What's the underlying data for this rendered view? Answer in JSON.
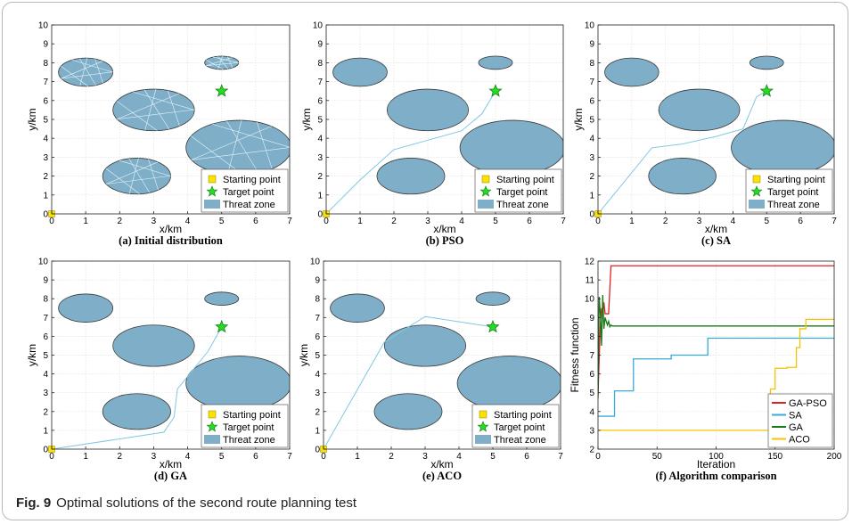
{
  "caption": {
    "label": "Fig. 9",
    "text": "Optimal solutions of the second route planning test"
  },
  "colors": {
    "threat_fill": "#7fafc8",
    "threat_edge": "#3a3a3a",
    "route": "#7ec8e3",
    "start": "#ffe000",
    "target": "#22dd22"
  },
  "chart_data": [
    {
      "type": "scatter",
      "subtitle": "(a) Initial distribution",
      "xlabel": "x/km",
      "ylabel": "y/km",
      "xlim": [
        0,
        7
      ],
      "ylim": [
        0,
        10
      ],
      "xticks": [
        0,
        1,
        2,
        3,
        4,
        5,
        6,
        7
      ],
      "yticks": [
        0,
        1,
        2,
        3,
        4,
        5,
        6,
        7,
        8,
        9,
        10
      ],
      "grid": true,
      "threats": [
        {
          "cx": 1.0,
          "cy": 7.5,
          "rx": 0.8,
          "ry": 0.75
        },
        {
          "cx": 5.0,
          "cy": 8.0,
          "rx": 0.5,
          "ry": 0.35
        },
        {
          "cx": 3.0,
          "cy": 5.5,
          "rx": 1.2,
          "ry": 1.1
        },
        {
          "cx": 5.5,
          "cy": 3.5,
          "rx": 1.55,
          "ry": 1.45
        },
        {
          "cx": 2.5,
          "cy": 2.0,
          "rx": 1.0,
          "ry": 0.95
        }
      ],
      "start": [
        0,
        0
      ],
      "target": [
        5,
        6.5
      ],
      "route": [],
      "initial_distribution": true,
      "legend": [
        "Starting point",
        "Target point",
        "Threat zone"
      ],
      "legend_position": "bottom-right"
    },
    {
      "type": "scatter",
      "subtitle": "(b) PSO",
      "xlabel": "x/km",
      "ylabel": "y/km",
      "xlim": [
        0,
        7
      ],
      "ylim": [
        0,
        10
      ],
      "xticks": [
        0,
        1,
        2,
        3,
        4,
        5,
        6,
        7
      ],
      "yticks": [
        0,
        1,
        2,
        3,
        4,
        5,
        6,
        7,
        8,
        9,
        10
      ],
      "grid": true,
      "threats": [
        {
          "cx": 1.0,
          "cy": 7.5,
          "rx": 0.8,
          "ry": 0.75
        },
        {
          "cx": 5.0,
          "cy": 8.0,
          "rx": 0.5,
          "ry": 0.35
        },
        {
          "cx": 3.0,
          "cy": 5.5,
          "rx": 1.2,
          "ry": 1.1
        },
        {
          "cx": 5.5,
          "cy": 3.5,
          "rx": 1.55,
          "ry": 1.45
        },
        {
          "cx": 2.5,
          "cy": 2.0,
          "rx": 1.0,
          "ry": 0.95
        }
      ],
      "start": [
        0,
        0
      ],
      "target": [
        5,
        6.5
      ],
      "route": [
        [
          0,
          0
        ],
        [
          1,
          1.8
        ],
        [
          2,
          3.4
        ],
        [
          3,
          3.9
        ],
        [
          4,
          4.4
        ],
        [
          4.6,
          5.3
        ],
        [
          5,
          6.5
        ]
      ],
      "legend": [
        "Starting point",
        "Target point",
        "Threat zone"
      ],
      "legend_position": "bottom-right"
    },
    {
      "type": "scatter",
      "subtitle": "(c) SA",
      "xlabel": "x/km",
      "ylabel": "y/km",
      "xlim": [
        0,
        7
      ],
      "ylim": [
        0,
        10
      ],
      "xticks": [
        0,
        1,
        2,
        3,
        4,
        5,
        6,
        7
      ],
      "yticks": [
        0,
        1,
        2,
        3,
        4,
        5,
        6,
        7,
        8,
        9,
        10
      ],
      "grid": true,
      "threats": [
        {
          "cx": 1.0,
          "cy": 7.5,
          "rx": 0.8,
          "ry": 0.75
        },
        {
          "cx": 5.0,
          "cy": 8.0,
          "rx": 0.5,
          "ry": 0.35
        },
        {
          "cx": 3.0,
          "cy": 5.5,
          "rx": 1.2,
          "ry": 1.1
        },
        {
          "cx": 5.5,
          "cy": 3.5,
          "rx": 1.55,
          "ry": 1.45
        },
        {
          "cx": 2.5,
          "cy": 2.0,
          "rx": 1.0,
          "ry": 0.95
        }
      ],
      "start": [
        0,
        0
      ],
      "target": [
        5,
        6.5
      ],
      "route": [
        [
          0,
          0
        ],
        [
          1.6,
          3.5
        ],
        [
          2.5,
          3.7
        ],
        [
          3.5,
          4.1
        ],
        [
          4.3,
          4.5
        ],
        [
          4.7,
          6.2
        ],
        [
          5,
          6.5
        ]
      ],
      "legend": [
        "Starting point",
        "Target point",
        "Threat zone"
      ],
      "legend_position": "bottom-right"
    },
    {
      "type": "scatter",
      "subtitle": "(d) GA",
      "xlabel": "x/km",
      "ylabel": "y/km",
      "xlim": [
        0,
        7
      ],
      "ylim": [
        0,
        10
      ],
      "xticks": [
        0,
        1,
        2,
        3,
        4,
        5,
        6,
        7
      ],
      "yticks": [
        0,
        1,
        2,
        3,
        4,
        5,
        6,
        7,
        8,
        9,
        10
      ],
      "grid": true,
      "threats": [
        {
          "cx": 1.0,
          "cy": 7.5,
          "rx": 0.8,
          "ry": 0.75
        },
        {
          "cx": 5.0,
          "cy": 8.0,
          "rx": 0.5,
          "ry": 0.35
        },
        {
          "cx": 3.0,
          "cy": 5.5,
          "rx": 1.2,
          "ry": 1.1
        },
        {
          "cx": 5.5,
          "cy": 3.5,
          "rx": 1.55,
          "ry": 1.45
        },
        {
          "cx": 2.5,
          "cy": 2.0,
          "rx": 1.0,
          "ry": 0.95
        }
      ],
      "start": [
        0,
        0
      ],
      "target": [
        5,
        6.5
      ],
      "route": [
        [
          0,
          0
        ],
        [
          3.3,
          0.9
        ],
        [
          3.6,
          1.7
        ],
        [
          3.7,
          3.2
        ],
        [
          4.6,
          5.2
        ],
        [
          5,
          6.5
        ]
      ],
      "legend": [
        "Starting point",
        "Target point",
        "Threat zone"
      ],
      "legend_position": "bottom-right"
    },
    {
      "type": "scatter",
      "subtitle": "(e) ACO",
      "xlabel": "x/km",
      "ylabel": "y/km",
      "xlim": [
        0,
        7
      ],
      "ylim": [
        0,
        10
      ],
      "xticks": [
        0,
        1,
        2,
        3,
        4,
        5,
        6,
        7
      ],
      "yticks": [
        0,
        1,
        2,
        3,
        4,
        5,
        6,
        7,
        8,
        9,
        10
      ],
      "grid": true,
      "threats": [
        {
          "cx": 1.0,
          "cy": 7.5,
          "rx": 0.8,
          "ry": 0.75
        },
        {
          "cx": 5.0,
          "cy": 8.0,
          "rx": 0.5,
          "ry": 0.35
        },
        {
          "cx": 3.0,
          "cy": 5.5,
          "rx": 1.2,
          "ry": 1.1
        },
        {
          "cx": 5.5,
          "cy": 3.5,
          "rx": 1.55,
          "ry": 1.45
        },
        {
          "cx": 2.5,
          "cy": 2.0,
          "rx": 1.0,
          "ry": 0.95
        }
      ],
      "start": [
        0,
        0
      ],
      "target": [
        5,
        6.5
      ],
      "route": [
        [
          0,
          0
        ],
        [
          1.8,
          5.7
        ],
        [
          3,
          7.05
        ],
        [
          5,
          6.5
        ]
      ],
      "legend": [
        "Starting point",
        "Target point",
        "Threat zone"
      ],
      "legend_position": "bottom-right"
    },
    {
      "type": "line",
      "subtitle": "(f) Algorithm comparison",
      "xlabel": "Iteration",
      "ylabel": "Fitness function",
      "xlim": [
        0,
        200
      ],
      "ylim": [
        2,
        12
      ],
      "xticks": [
        0,
        50,
        100,
        150,
        200
      ],
      "yticks": [
        2,
        3,
        4,
        5,
        6,
        7,
        8,
        9,
        10,
        11,
        12
      ],
      "grid": true,
      "legend_position": "bottom-right",
      "series": [
        {
          "name": "GA-PSO",
          "color": "#e02020",
          "x": [
            0,
            1,
            2,
            3,
            4,
            5,
            6,
            7,
            8,
            9,
            10,
            11,
            12,
            200
          ],
          "y": [
            4.9,
            6.8,
            8.7,
            9.5,
            9.2,
            9.8,
            9.2,
            9.2,
            9.2,
            9.2,
            10.5,
            11.75,
            11.75,
            11.75
          ]
        },
        {
          "name": "SA",
          "color": "#3aaad6",
          "x": [
            0,
            14,
            14,
            26,
            26,
            30,
            30,
            62,
            62,
            93,
            93,
            200
          ],
          "y": [
            3.75,
            3.75,
            5.1,
            5.1,
            5.1,
            5.1,
            6.8,
            6.8,
            7.0,
            7.0,
            7.9,
            7.9
          ]
        },
        {
          "name": "GA",
          "color": "#1a7a1a",
          "x": [
            0,
            1,
            2,
            3,
            4,
            5,
            6,
            7,
            8,
            9,
            10,
            11,
            12,
            13,
            14,
            200
          ],
          "y": [
            4.7,
            10.1,
            9.2,
            7.5,
            10.2,
            8.4,
            9.0,
            8.8,
            8.6,
            8.8,
            8.5,
            8.6,
            8.55,
            8.55,
            8.55,
            8.55
          ]
        },
        {
          "name": "ACO",
          "color": "#f5c400",
          "x": [
            0,
            146,
            146,
            150,
            150,
            160,
            160,
            168,
            168,
            171,
            171,
            176,
            176,
            200
          ],
          "y": [
            3.0,
            3.0,
            5.2,
            5.2,
            6.3,
            6.3,
            6.35,
            6.35,
            7.4,
            7.4,
            8.4,
            8.4,
            8.9,
            8.9
          ]
        }
      ]
    }
  ]
}
